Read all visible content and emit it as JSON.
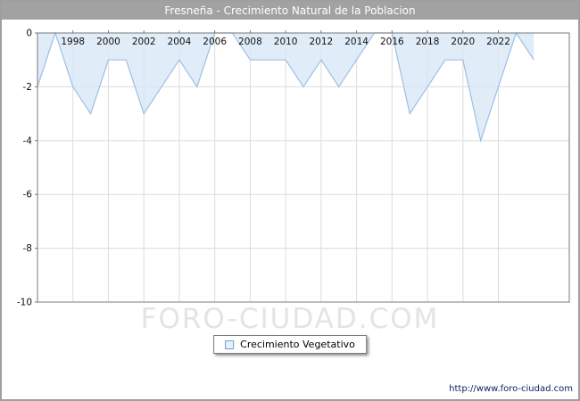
{
  "header": {
    "title": "Fresneña - Crecimiento Natural de la Poblacion"
  },
  "legend": {
    "label": "Crecimiento Vegetativo"
  },
  "watermark": "FORO-CIUDAD.COM",
  "footer": {
    "url": "http://www.foro-ciudad.com"
  },
  "chart_data": {
    "type": "area",
    "title": "Fresneña - Crecimiento Natural de la Poblacion",
    "series_name": "Crecimiento Vegetativo",
    "x": [
      1996,
      1997,
      1998,
      1999,
      2000,
      2001,
      2002,
      2003,
      2004,
      2005,
      2006,
      2007,
      2008,
      2009,
      2010,
      2011,
      2012,
      2013,
      2014,
      2015,
      2016,
      2017,
      2018,
      2019,
      2020,
      2021,
      2022,
      2023,
      2024
    ],
    "values": [
      -2,
      0,
      -2,
      -3,
      -1,
      -1,
      -3,
      -2,
      -1,
      -2,
      0,
      0,
      -1,
      -1,
      -1,
      -2,
      -1,
      -2,
      -1,
      0,
      0,
      -3,
      -2,
      -1,
      -1,
      -4,
      -2,
      0,
      -1
    ],
    "x_ticks": [
      1998,
      2000,
      2002,
      2004,
      2006,
      2008,
      2010,
      2012,
      2014,
      2016,
      2018,
      2020,
      2022
    ],
    "y_ticks": [
      0,
      -2,
      -4,
      -6,
      -8,
      -10
    ],
    "xlim": [
      1996,
      2026
    ],
    "ylim": [
      -10,
      0
    ],
    "grid": true,
    "legend_position": "bottom",
    "colors": {
      "fill": "#d9e7f8",
      "line": "#9bbfe6",
      "grid": "#dcdcdc",
      "axis": "#7a7a7a",
      "tick_text": "#111111",
      "title_bg": "#a2a2a2",
      "title_text": "#ffffff"
    }
  }
}
